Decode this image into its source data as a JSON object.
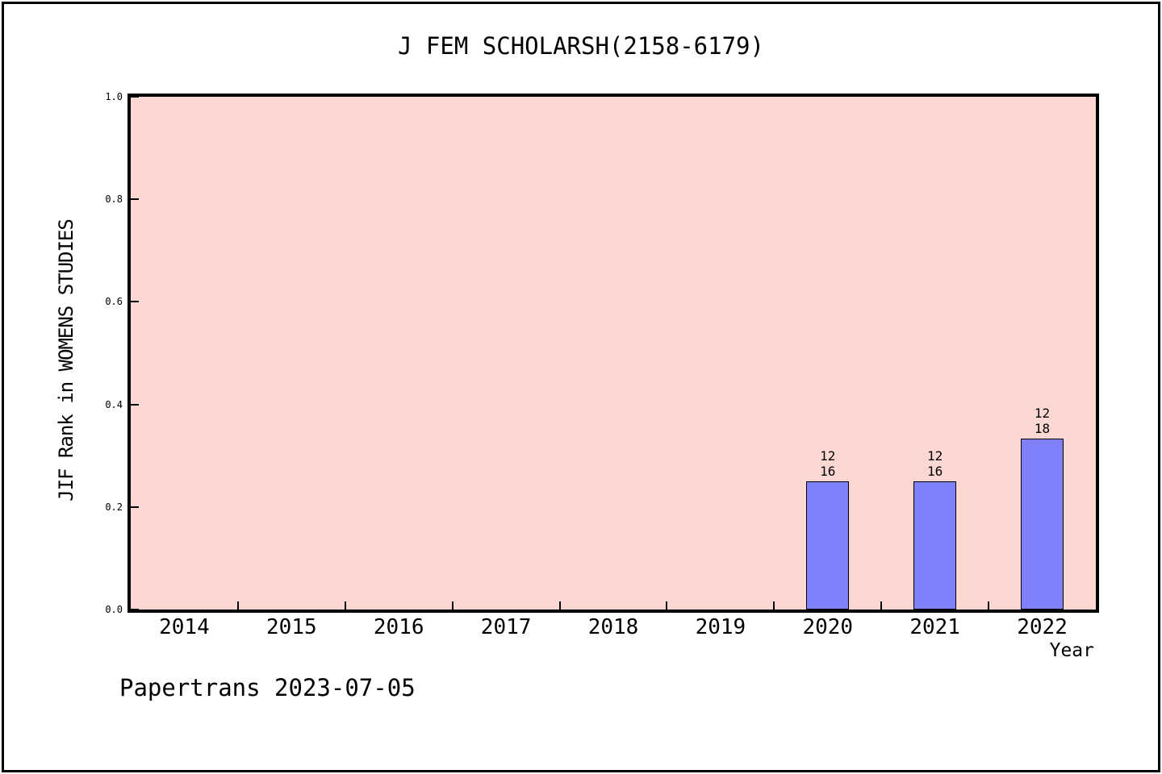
{
  "page": {
    "background": "#ffffff",
    "frame_border_color": "#000000"
  },
  "chart_data": {
    "type": "bar",
    "title": "J FEM SCHOLARSH(2158-6179)",
    "xlabel": "Year",
    "ylabel": "JIF Rank in WOMENS STUDIES",
    "categories": [
      "2014",
      "2015",
      "2016",
      "2017",
      "2018",
      "2019",
      "2020",
      "2021",
      "2022"
    ],
    "values": [
      null,
      null,
      null,
      null,
      null,
      null,
      0.25,
      0.25,
      0.333
    ],
    "bar_value_labels": [
      null,
      null,
      null,
      null,
      null,
      null,
      [
        "12",
        "16"
      ],
      [
        "12",
        "16"
      ],
      [
        "12",
        "18"
      ]
    ],
    "y_ticks": [
      "0.0",
      "0.2",
      "0.4",
      "0.6",
      "0.8",
      "1.0"
    ],
    "ylim": [
      0,
      1
    ],
    "grid": false,
    "legend": false,
    "plot_background": "#fdd8d3",
    "bar_fill": "#8080fa",
    "bar_edge": "#000000",
    "axis_color": "#000000"
  },
  "footer": {
    "text": "Papertrans 2023-07-05"
  }
}
